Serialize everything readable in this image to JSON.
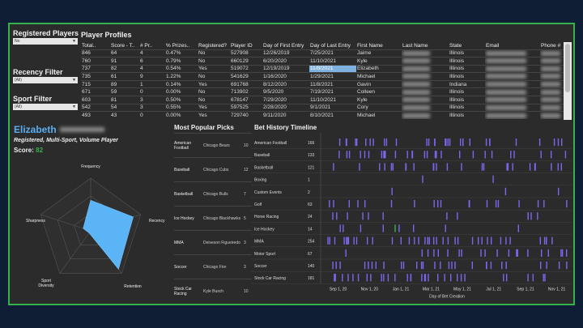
{
  "filters": [
    {
      "title": "Registered Players",
      "value": "No"
    },
    {
      "title": "Recency Filter",
      "value": "(All)"
    },
    {
      "title": "Sport Filter",
      "value": "(All)"
    }
  ],
  "profiles": {
    "title": "Player Profiles",
    "columns": [
      "Total..",
      "Score - T..",
      "# Pr..",
      "% Prizes..",
      "Registered?",
      "Player ID",
      "Day of First Entry",
      "Day of Last Entry",
      "First Name",
      "Last Name",
      "State",
      "Email",
      "Phone #"
    ],
    "rows": [
      [
        "846",
        "64",
        "4",
        "0.47%",
        "No",
        "527908",
        "12/26/2019",
        "7/25/2021",
        "Jaime",
        "",
        "Illinois",
        "",
        ""
      ],
      [
        "760",
        "91",
        "6",
        "0.79%",
        "No",
        "660129",
        "6/20/2020",
        "11/10/2021",
        "Kyle",
        "",
        "Illinois",
        "",
        ""
      ],
      [
        "737",
        "82",
        "4",
        "0.54%",
        "Yes",
        "519072",
        "12/19/2019",
        "11/8/2021",
        "Elizabeth",
        "",
        "Illinois",
        "",
        ""
      ],
      [
        "735",
        "61",
        "9",
        "1.22%",
        "No",
        "541629",
        "1/16/2020",
        "1/29/2021",
        "Michael",
        "",
        "Illinois",
        "",
        ""
      ],
      [
        "715",
        "89",
        "1",
        "0.14%",
        "Yes",
        "691768",
        "8/12/2020",
        "11/8/2021",
        "Gavin",
        "",
        "Indiana",
        "",
        ""
      ],
      [
        "671",
        "59",
        "0",
        "0.00%",
        "No",
        "713902",
        "9/5/2020",
        "7/19/2021",
        "Colleen",
        "",
        "Illinois",
        "",
        ""
      ],
      [
        "603",
        "81",
        "3",
        "0.50%",
        "No",
        "678147",
        "7/29/2020",
        "11/10/2021",
        "Kyle",
        "",
        "Illinois",
        "",
        ""
      ],
      [
        "542",
        "54",
        "3",
        "0.55%",
        "Yes",
        "597525",
        "2/28/2020",
        "9/1/2021",
        "Cory",
        "",
        "Illinois",
        "",
        ""
      ],
      [
        "493",
        "43",
        "0",
        "0.00%",
        "Yes",
        "729740",
        "9/11/2020",
        "8/10/2021",
        "Michael",
        "",
        "Illinois",
        "",
        ""
      ]
    ]
  },
  "player": {
    "first_name": "Elizabeth",
    "description": "Registered, Multi-Sport, Volume Player",
    "score_label": "Score:",
    "score": "82"
  },
  "radar": {
    "labels": [
      "Frequency",
      "Recency",
      "Retention",
      "Sport Diversity",
      "Sharpness"
    ],
    "values": [
      0.58,
      0.85,
      0.9,
      0.05,
      0.15
    ]
  },
  "picks": {
    "title": "Most Popular Picks",
    "rows": [
      {
        "sport": "American Football",
        "pick": "Chicago Bears",
        "count": "10"
      },
      {
        "sport": "Baseball",
        "pick": "Chicago Cubs",
        "count": "12"
      },
      {
        "sport": "Basketball",
        "pick": "Chicago Bulls",
        "count": "7"
      },
      {
        "sport": "Ice Hockey",
        "pick": "Chicago Blackhawks",
        "count": "5"
      },
      {
        "sport": "MMA",
        "pick": "Deiveson Figueiredo",
        "count": "3"
      },
      {
        "sport": "Soccer",
        "pick": "Chicago Fire",
        "count": "3"
      },
      {
        "sport": "Stock Car Racing",
        "pick": "Kyle Busch",
        "count": "10"
      }
    ]
  },
  "chart_data": {
    "type": "scatter",
    "title": "Bet History Timeline",
    "xlabel": "Day of Bet Creation",
    "x_ticks": [
      "Sep 1, 20",
      "Nov 1, 20",
      "Jan 1, 21",
      "Mar 1, 21",
      "May 1, 21",
      "Jul 1, 21",
      "Sep 1, 21",
      "Nov 1, 21"
    ],
    "x_range": [
      "2020-08-01",
      "2021-11-30"
    ],
    "color": "#7b68ee",
    "highlight_color": "#35b24b",
    "series": [
      {
        "name": "American Football",
        "count": "166"
      },
      {
        "name": "Baseball",
        "count": "133"
      },
      {
        "name": "Basketball",
        "count": "121"
      },
      {
        "name": "Boxing",
        "count": "1"
      },
      {
        "name": "Custom Events",
        "count": "2"
      },
      {
        "name": "Golf",
        "count": "63"
      },
      {
        "name": "Horse Racing",
        "count": "24"
      },
      {
        "name": "Ice Hockey",
        "count": "14"
      },
      {
        "name": "MMA",
        "count": "254"
      },
      {
        "name": "Motor Sport",
        "count": "67"
      },
      {
        "name": "Soccer",
        "count": "140"
      },
      {
        "name": "Stock Car Racing",
        "count": "181"
      }
    ]
  }
}
